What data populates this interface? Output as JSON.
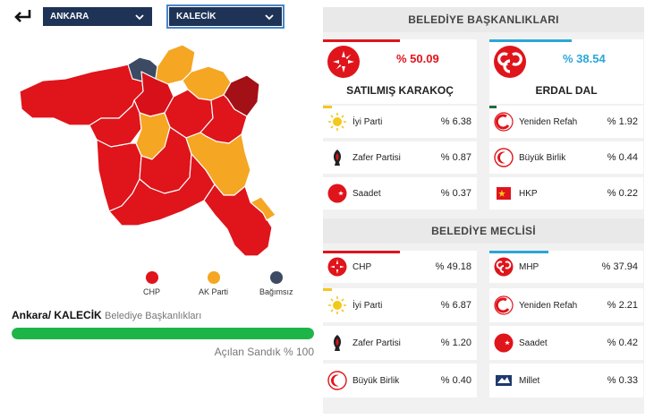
{
  "filters": {
    "city": "ANKARA",
    "district": "KALECİK"
  },
  "legend": [
    {
      "label": "CHP",
      "color": "#e0141b"
    },
    {
      "label": "AK Parti",
      "color": "#f5a623"
    },
    {
      "label": "Bağımsız",
      "color": "#3c4a64"
    }
  ],
  "region": {
    "title": "Ankara/ KALECİK",
    "subtitle": "Belediye Başkanlıkları",
    "progress_percent": 100,
    "progress_label": "Açılan Sandık % 100"
  },
  "mayor": {
    "header": "BELEDİYE BAŞKANLIKLARI",
    "winners": [
      {
        "pct": "% 50.09",
        "name": "SATILMIŞ KARAKOÇ",
        "color": "#e0141b",
        "party": "CHP"
      },
      {
        "pct": "% 38.54",
        "name": "ERDAL DAL",
        "color": "#2aa7d8",
        "party": "MHP"
      }
    ],
    "others": [
      {
        "name": "İyi Parti",
        "pct": "% 6.38",
        "icon": "iyi-parti-sun-icon",
        "bar": "#f3c81b"
      },
      {
        "name": "Yeniden Refah",
        "pct": "% 1.92",
        "icon": "yeniden-refah-icon",
        "bar": "#1d6e3a"
      },
      {
        "name": "Zafer Partisi",
        "pct": "% 0.87",
        "icon": "zafer-partisi-icon",
        "bar": ""
      },
      {
        "name": "Büyük Birlik",
        "pct": "% 0.44",
        "icon": "buyuk-birlik-icon",
        "bar": ""
      },
      {
        "name": "Saadet",
        "pct": "% 0.37",
        "icon": "saadet-icon",
        "bar": ""
      },
      {
        "name": "HKP",
        "pct": "% 0.22",
        "icon": "hkp-icon",
        "bar": ""
      }
    ]
  },
  "council": {
    "header": "BELEDİYE MECLİSİ",
    "rows": [
      {
        "name": "CHP",
        "pct": "% 49.18",
        "icon": "chp-icon",
        "bar": "#e0141b"
      },
      {
        "name": "MHP",
        "pct": "% 37.94",
        "icon": "mhp-icon",
        "bar": "#2aa7d8"
      },
      {
        "name": "İyi Parti",
        "pct": "% 6.87",
        "icon": "iyi-parti-sun-icon",
        "bar": "#f3c81b"
      },
      {
        "name": "Yeniden Refah",
        "pct": "% 2.21",
        "icon": "yeniden-refah-icon",
        "bar": ""
      },
      {
        "name": "Zafer Partisi",
        "pct": "% 1.20",
        "icon": "zafer-partisi-icon",
        "bar": ""
      },
      {
        "name": "Saadet",
        "pct": "% 0.42",
        "icon": "saadet-icon",
        "bar": ""
      },
      {
        "name": "Büyük Birlik",
        "pct": "% 0.40",
        "icon": "buyuk-birlik-icon",
        "bar": ""
      },
      {
        "name": "Millet",
        "pct": "% 0.33",
        "icon": "millet-icon",
        "bar": ""
      }
    ]
  }
}
